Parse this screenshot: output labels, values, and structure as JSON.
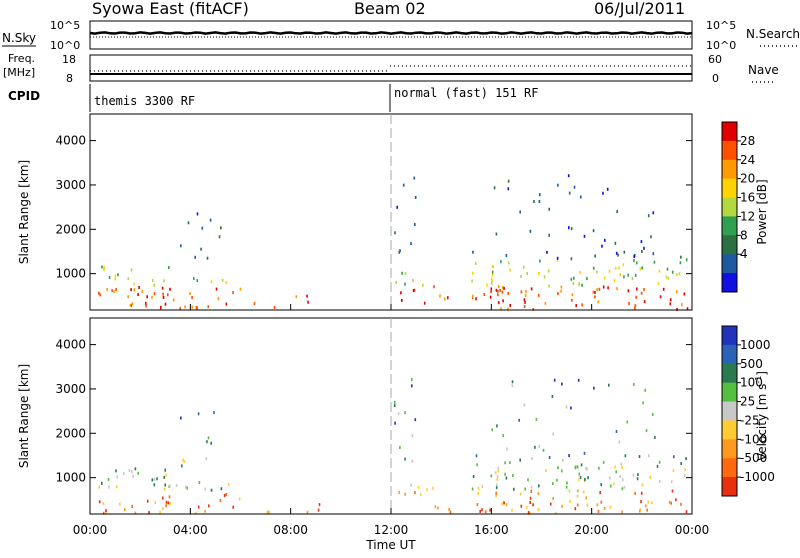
{
  "header": {
    "title": "Syowa East (fitACF)",
    "beam": "Beam 02",
    "date": "06/Jul/2011"
  },
  "noise_panel": {
    "left_label": "N.Sky",
    "right_label": "N.Search",
    "left_ticks": [
      "10^5",
      "10^0"
    ],
    "right_ticks": [
      "10^5",
      "10^0"
    ]
  },
  "freq_panel": {
    "left_label_1": "Freq.",
    "left_label_2": "[MHz]",
    "right_label": "Nave",
    "left_ticks": [
      "18",
      "8"
    ],
    "right_ticks": [
      "60",
      "0"
    ]
  },
  "cpid_panel": {
    "label": "CPID",
    "modes": [
      {
        "name": "themis 3300 RF",
        "start_hour": 0
      },
      {
        "name": "normal (fast) 151 RF",
        "start_hour": 12
      }
    ]
  },
  "chart_data": [
    {
      "type": "heatmap",
      "ylabel": "Slant Range [km]",
      "colorbar_label": "Power [dB]",
      "colorbar_ticks": [
        "28",
        "24",
        "20",
        "16",
        "12",
        "8",
        "4"
      ],
      "colorbar_colors": [
        "#e00000",
        "#ff5000",
        "#ff9a00",
        "#ffd400",
        "#b4d840",
        "#2ea050",
        "#2a7040",
        "#1e5aa0",
        "#1010e0"
      ],
      "yticks": [
        1000,
        2000,
        3000,
        4000
      ],
      "ylim": [
        180,
        4600
      ],
      "xlim": [
        0,
        24
      ]
    },
    {
      "type": "heatmap",
      "ylabel": "Slant Range [km]",
      "colorbar_label": "Velocity [m s",
      "colorbar_label_sup": "-1",
      "colorbar_label_end": "]",
      "colorbar_ticks": [
        "1000",
        "500",
        "100",
        "25",
        "-25",
        "-100",
        "-500",
        "-1000"
      ],
      "colorbar_colors": [
        "#2233bb",
        "#2a62b8",
        "#2a7a50",
        "#55c040",
        "#c8c8c8",
        "#ffcc33",
        "#ff9a20",
        "#ff6a10",
        "#e83010"
      ],
      "yticks": [
        1000,
        2000,
        3000,
        4000
      ],
      "ylim": [
        180,
        4600
      ],
      "xlim": [
        0,
        24
      ]
    }
  ],
  "x_axis": {
    "ticks": [
      "00:00",
      "04:00",
      "08:00",
      "12:00",
      "16:00",
      "20:00",
      "00:00"
    ],
    "label": "Time UT"
  }
}
